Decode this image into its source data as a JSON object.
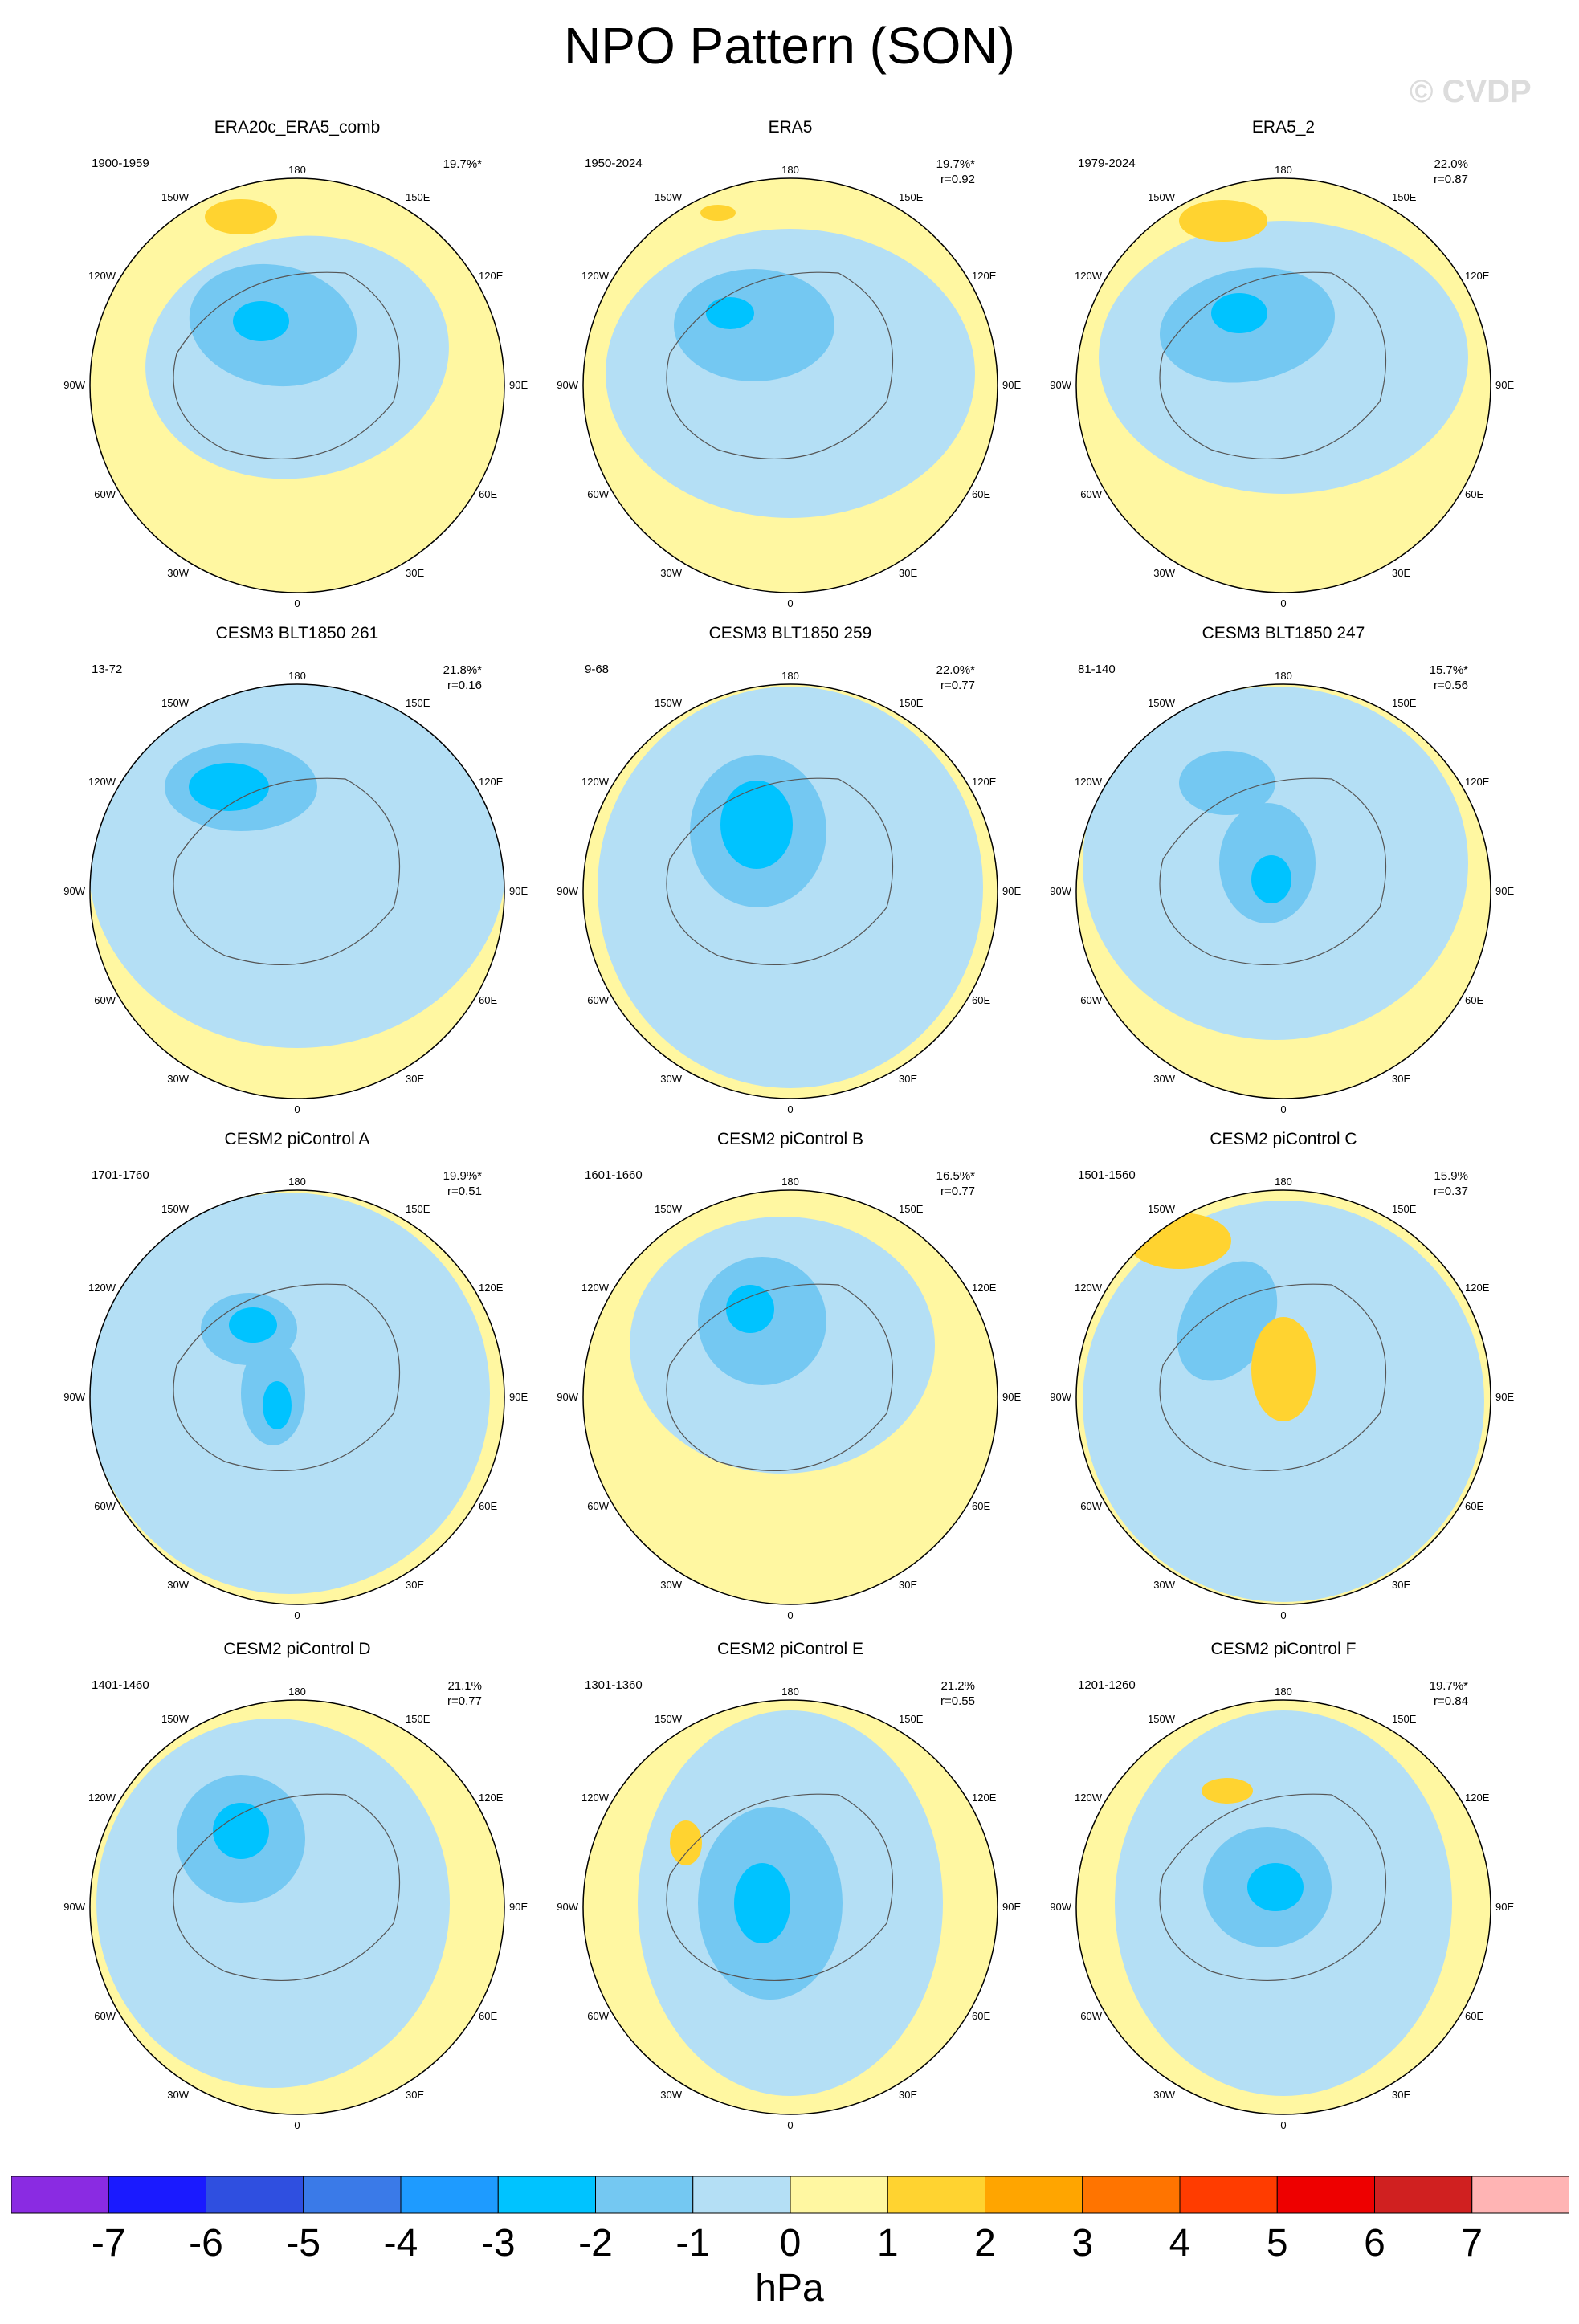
{
  "title": "NPO Pattern (SON)",
  "watermark": "© CVDP",
  "units": "hPa",
  "colorbar": {
    "colors": [
      "#8a2be2",
      "#1a1aff",
      "#2f4fe0",
      "#3a7ae8",
      "#1e9bff",
      "#00c3ff",
      "#74c8f2",
      "#b4dff5",
      "#fff7a1",
      "#ffd330",
      "#ffa500",
      "#ff7400",
      "#ff3c00",
      "#ee0000",
      "#d02020",
      "#ffb4b4"
    ],
    "labels": [
      "-7",
      "-6",
      "-5",
      "-4",
      "-3",
      "-2",
      "-1",
      "0",
      "1",
      "2",
      "3",
      "4",
      "5",
      "6",
      "7"
    ]
  },
  "lon_labels": {
    "top": "180",
    "tl": "150W",
    "tr": "150E",
    "ul": "120W",
    "ur": "120E",
    "l": "90W",
    "r": "90E",
    "ll": "60W",
    "lr": "60E",
    "bl": "30W",
    "br": "30E",
    "bottom": "0"
  },
  "panels": [
    {
      "title": "ERA20c_ERA5_comb",
      "years": "1900-1959",
      "pct": "19.7%*",
      "r": ""
    },
    {
      "title": "ERA5",
      "years": "1950-2024",
      "pct": "19.7%*",
      "r": "r=0.92"
    },
    {
      "title": "ERA5_2",
      "years": "1979-2024",
      "pct": "22.0%",
      "r": "r=0.87"
    },
    {
      "title": "CESM3 BLT1850 261",
      "years": "13-72",
      "pct": "21.8%*",
      "r": "r=0.16"
    },
    {
      "title": "CESM3 BLT1850 259",
      "years": "9-68",
      "pct": "22.0%*",
      "r": "r=0.77"
    },
    {
      "title": "CESM3 BLT1850 247",
      "years": "81-140",
      "pct": "15.7%*",
      "r": "r=0.56"
    },
    {
      "title": "CESM2 piControl A",
      "years": "1701-1760",
      "pct": "19.9%*",
      "r": "r=0.51"
    },
    {
      "title": "CESM2 piControl B",
      "years": "1601-1660",
      "pct": "16.5%*",
      "r": "r=0.77"
    },
    {
      "title": "CESM2 piControl C",
      "years": "1501-1560",
      "pct": "15.9%",
      "r": "r=0.37"
    },
    {
      "title": "CESM2 piControl D",
      "years": "1401-1460",
      "pct": "21.1%",
      "r": "r=0.77"
    },
    {
      "title": "CESM2 piControl E",
      "years": "1301-1360",
      "pct": "21.2%",
      "r": "r=0.55"
    },
    {
      "title": "CESM2 piControl F",
      "years": "1201-1260",
      "pct": "19.7%*",
      "r": "r=0.84"
    }
  ]
}
